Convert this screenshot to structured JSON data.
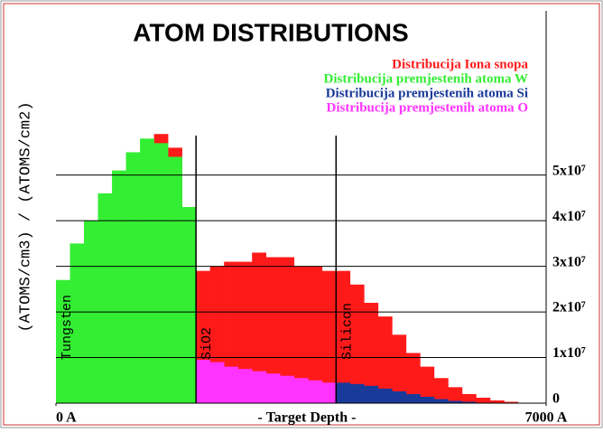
{
  "chart_data": {
    "type": "histogram",
    "title": "ATOM DISTRIBUTIONS",
    "x_label": "- Target Depth -",
    "y_label": "(ATOMS/cm3) / (ATOMS/cm2)",
    "bins": [
      0,
      200,
      400,
      600,
      800,
      1000,
      1200,
      1400,
      1600,
      1800,
      2000,
      2200,
      2400,
      2600,
      2800,
      3000,
      3200,
      3400,
      3600,
      3800,
      4000,
      4200,
      4400,
      4600,
      4800,
      5000,
      5200,
      5400,
      5600,
      5800,
      6000,
      6200,
      6400,
      6600,
      6800,
      7000
    ],
    "series": [
      {
        "name": "Distribucija Iona snopa",
        "color": "#ff1a1a",
        "values": [
          22000000.0,
          26000000.0,
          32000000.0,
          36000000.0,
          43000000.0,
          49000000.0,
          54000000.0,
          59000000.0,
          56000000.0,
          39000000.0,
          29000000.0,
          30000000.0,
          31000000.0,
          31000000.0,
          33000000.0,
          32000000.0,
          32000000.0,
          30000000.0,
          30000000.0,
          29000000.0,
          29000000.0,
          26000000.0,
          22000000.0,
          19000000.0,
          15000000.0,
          11000000.0,
          8000000.0,
          5500000.0,
          3500000.0,
          2000000.0,
          1200000.0,
          600000.0,
          300000.0,
          100000.0,
          0
        ]
      },
      {
        "name": "Distribucija premjestenih atoma W",
        "color": "#33ee33",
        "values": [
          27000000.0,
          35000000.0,
          40000000.0,
          46000000.0,
          51000000.0,
          55000000.0,
          58000000.0,
          57000000.0,
          54000000.0,
          43000000.0,
          0,
          0,
          0,
          0,
          0,
          0,
          0,
          0,
          0,
          0,
          0,
          0,
          0,
          0,
          0,
          0,
          0,
          0,
          0,
          0,
          0,
          0,
          0,
          0,
          0
        ]
      },
      {
        "name": "Distribucija premjestenih atoma Si",
        "color": "#1a3a9a",
        "values": [
          0,
          0,
          0,
          0,
          0,
          0,
          0,
          0,
          0,
          0,
          0,
          0,
          0,
          0,
          0,
          0,
          0,
          0,
          0,
          0,
          4500000.0,
          4200000.0,
          3800000.0,
          3200000.0,
          2600000.0,
          2000000.0,
          1400000.0,
          900000.0,
          500000.0,
          300000.0,
          100000.0,
          0,
          0,
          0,
          0
        ]
      },
      {
        "name": "Distribucija premjestenih atoma O",
        "color": "#ff33ff",
        "values": [
          0,
          0,
          0,
          0,
          0,
          0,
          0,
          0,
          0,
          0,
          9500000.0,
          9000000.0,
          8000000.0,
          7500000.0,
          7000000.0,
          6500000.0,
          6000000.0,
          5500000.0,
          5000000.0,
          4500000.0,
          0,
          0,
          0,
          0,
          0,
          0,
          0,
          0,
          0,
          0,
          0,
          0,
          0,
          0,
          0
        ]
      }
    ],
    "xlim": [
      0,
      7000
    ],
    "xticks": [
      {
        "value": 0,
        "label": "0 A"
      },
      {
        "value": 7000,
        "label": "7000 A"
      }
    ],
    "ylim": [
      0,
      86000000.0
    ],
    "yticks": [
      {
        "value": 0,
        "label": "0"
      },
      {
        "value": 10000000.0,
        "label": "1x10⁷"
      },
      {
        "value": 20000000.0,
        "label": "2x10⁷"
      },
      {
        "value": 30000000.0,
        "label": "3x10⁷"
      },
      {
        "value": 40000000.0,
        "label": "4x10⁷"
      },
      {
        "value": 50000000.0,
        "label": "5x10⁷"
      }
    ],
    "grid": true,
    "layer_boundaries": [
      2000,
      4000
    ],
    "layers": [
      "Tungsten",
      "SiO2",
      "Silicon"
    ]
  }
}
